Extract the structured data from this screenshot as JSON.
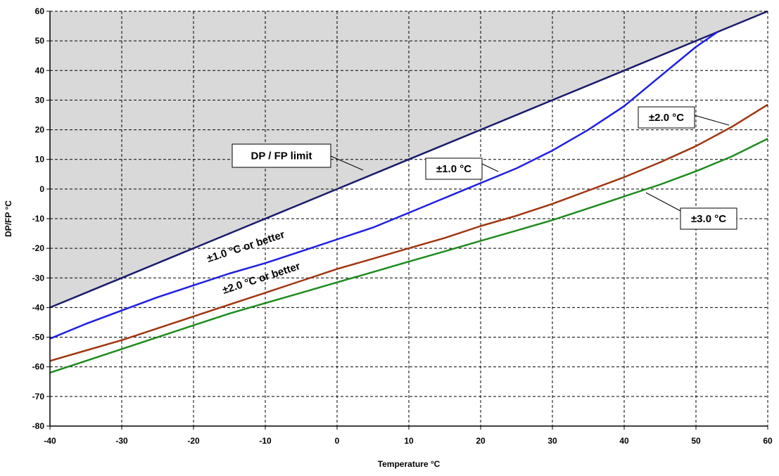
{
  "chart_data": {
    "type": "line",
    "title": "",
    "xlabel": "Temperature °C",
    "ylabel": "DP/FP °C",
    "xlim": [
      -40,
      60
    ],
    "ylim": [
      -80,
      60
    ],
    "x_ticks": [
      -40,
      -30,
      -20,
      -10,
      0,
      10,
      20,
      30,
      40,
      50,
      60
    ],
    "y_ticks": [
      -80,
      -70,
      -60,
      -50,
      -40,
      -30,
      -20,
      -10,
      0,
      10,
      20,
      30,
      40,
      50,
      60
    ],
    "grid": true,
    "shaded_region": "above DP / FP limit line",
    "colors": {
      "shade": "#d9d9d9",
      "limit": "#1a1a6e",
      "accuracy_1": "#1f1fe6",
      "accuracy_2": "#a0360f",
      "accuracy_3": "#1e8c1e"
    },
    "series": [
      {
        "x": [
          -40,
          -30,
          -20,
          -10,
          0,
          10,
          20,
          30,
          40,
          50,
          60
        ],
        "y": [
          -40,
          -30,
          -20,
          -10,
          0,
          10,
          20,
          30,
          40,
          50,
          60
        ]
      },
      {
        "x": [
          -40,
          -35,
          -30,
          -25,
          -20,
          -15,
          -10,
          -5,
          0,
          5,
          10,
          15,
          20,
          25,
          30,
          35,
          40,
          45,
          50,
          53
        ],
        "y": [
          -50.5,
          -45.5,
          -41,
          -36.5,
          -32.5,
          -28.5,
          -25,
          -21,
          -17,
          -13,
          -8,
          -3,
          2,
          7,
          13,
          20,
          28,
          38,
          48,
          53
        ]
      },
      {
        "x": [
          -40,
          -35,
          -30,
          -25,
          -20,
          -15,
          -10,
          -5,
          0,
          5,
          10,
          15,
          20,
          25,
          30,
          35,
          40,
          45,
          50,
          55,
          60
        ],
        "y": [
          -58,
          -54.5,
          -51,
          -47,
          -43,
          -39,
          -35,
          -31,
          -27,
          -23.5,
          -20,
          -16.5,
          -12.5,
          -9,
          -5,
          -0.5,
          4,
          9,
          14.5,
          21,
          28.5
        ]
      },
      {
        "x": [
          -40,
          -35,
          -30,
          -25,
          -20,
          -15,
          -10,
          -5,
          0,
          5,
          10,
          15,
          20,
          25,
          30,
          35,
          40,
          45,
          50,
          55,
          60
        ],
        "y": [
          -62,
          -58,
          -54,
          -50,
          -46,
          -42,
          -38.5,
          -35,
          -31.5,
          -28,
          -24.5,
          -21,
          -17.5,
          -14,
          -10.5,
          -6.5,
          -2.5,
          1.5,
          6,
          11,
          17
        ]
      }
    ],
    "annotations": {
      "limit_label": "DP / FP limit",
      "label_1": "±1.0 °C",
      "label_2": "±2.0 °C",
      "label_3": "±3.0 °C",
      "region_1": "±1.0 °C or better",
      "region_2": "±2.0 °C or better"
    }
  }
}
